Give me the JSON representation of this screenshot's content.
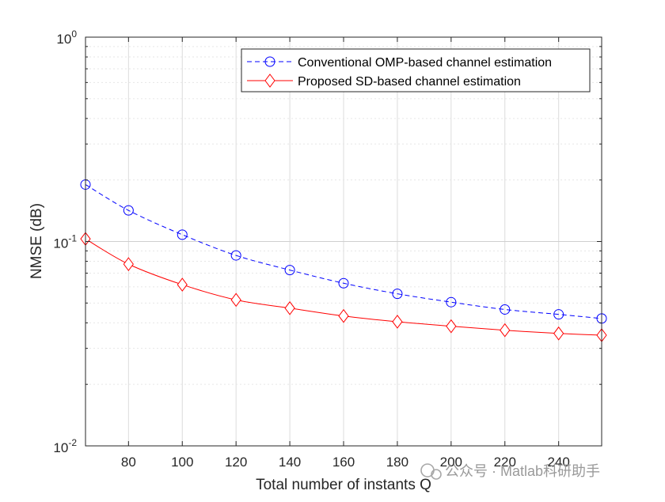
{
  "chart_data": {
    "type": "line",
    "title": "",
    "xlabel": "Total number of instants Q",
    "ylabel": "NMSE (dB)",
    "x": [
      64,
      80,
      100,
      120,
      140,
      160,
      180,
      200,
      220,
      240,
      256
    ],
    "xlim": [
      64,
      256
    ],
    "xticks": [
      80,
      100,
      120,
      140,
      160,
      180,
      200,
      220,
      240
    ],
    "xtick_labels": [
      "80",
      "100",
      "120",
      "140",
      "160",
      "180",
      "200",
      "220",
      "240"
    ],
    "yscale": "log",
    "ylim": [
      0.01,
      1
    ],
    "yticks": [
      {
        "value": 0.01,
        "base": "10",
        "exp": "-2"
      },
      {
        "value": 0.1,
        "base": "10",
        "exp": "-1"
      },
      {
        "value": 1,
        "base": "10",
        "exp": "0"
      }
    ],
    "grid": true,
    "legend_position": "top-right",
    "series": [
      {
        "name": "Conventional OMP-based channel estimation",
        "color": "#0000ff",
        "line_style": "dashed",
        "marker": "circle",
        "values": [
          0.19,
          0.142,
          0.108,
          0.0855,
          0.0725,
          0.0625,
          0.0555,
          0.0505,
          0.0465,
          0.044,
          0.042
        ]
      },
      {
        "name": "Proposed SD-based channel estimation",
        "color": "#ff0000",
        "line_style": "solid",
        "marker": "diamond",
        "values": [
          0.103,
          0.0775,
          0.0615,
          0.0518,
          0.0472,
          0.0432,
          0.0405,
          0.0385,
          0.0368,
          0.0355,
          0.0348
        ]
      }
    ]
  },
  "watermark": {
    "text": "公众号 · Matlab科研助手",
    "icon": "wechat-icon"
  }
}
